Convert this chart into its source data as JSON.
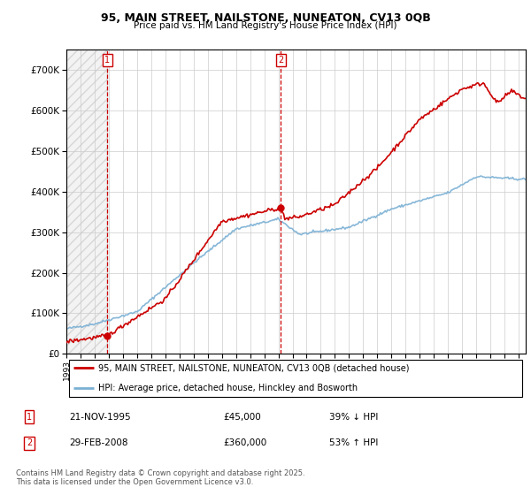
{
  "title1": "95, MAIN STREET, NAILSTONE, NUNEATON, CV13 0QB",
  "title2": "Price paid vs. HM Land Registry's House Price Index (HPI)",
  "legend_line1": "95, MAIN STREET, NAILSTONE, NUNEATON, CV13 0QB (detached house)",
  "legend_line2": "HPI: Average price, detached house, Hinckley and Bosworth",
  "footer": "Contains HM Land Registry data © Crown copyright and database right 2025.\nThis data is licensed under the Open Government Licence v3.0.",
  "sale1_date": "21-NOV-1995",
  "sale1_price": 45000,
  "sale1_hpi": "39% ↓ HPI",
  "sale2_date": "29-FEB-2008",
  "sale2_price": 360000,
  "sale2_hpi": "53% ↑ HPI",
  "sale1_x": 1995.89,
  "sale2_x": 2008.16,
  "price_color": "#cc0000",
  "hpi_color": "#7ab0d4",
  "ylim_max": 750000,
  "xlim_min": 1993.0,
  "xlim_max": 2025.5
}
